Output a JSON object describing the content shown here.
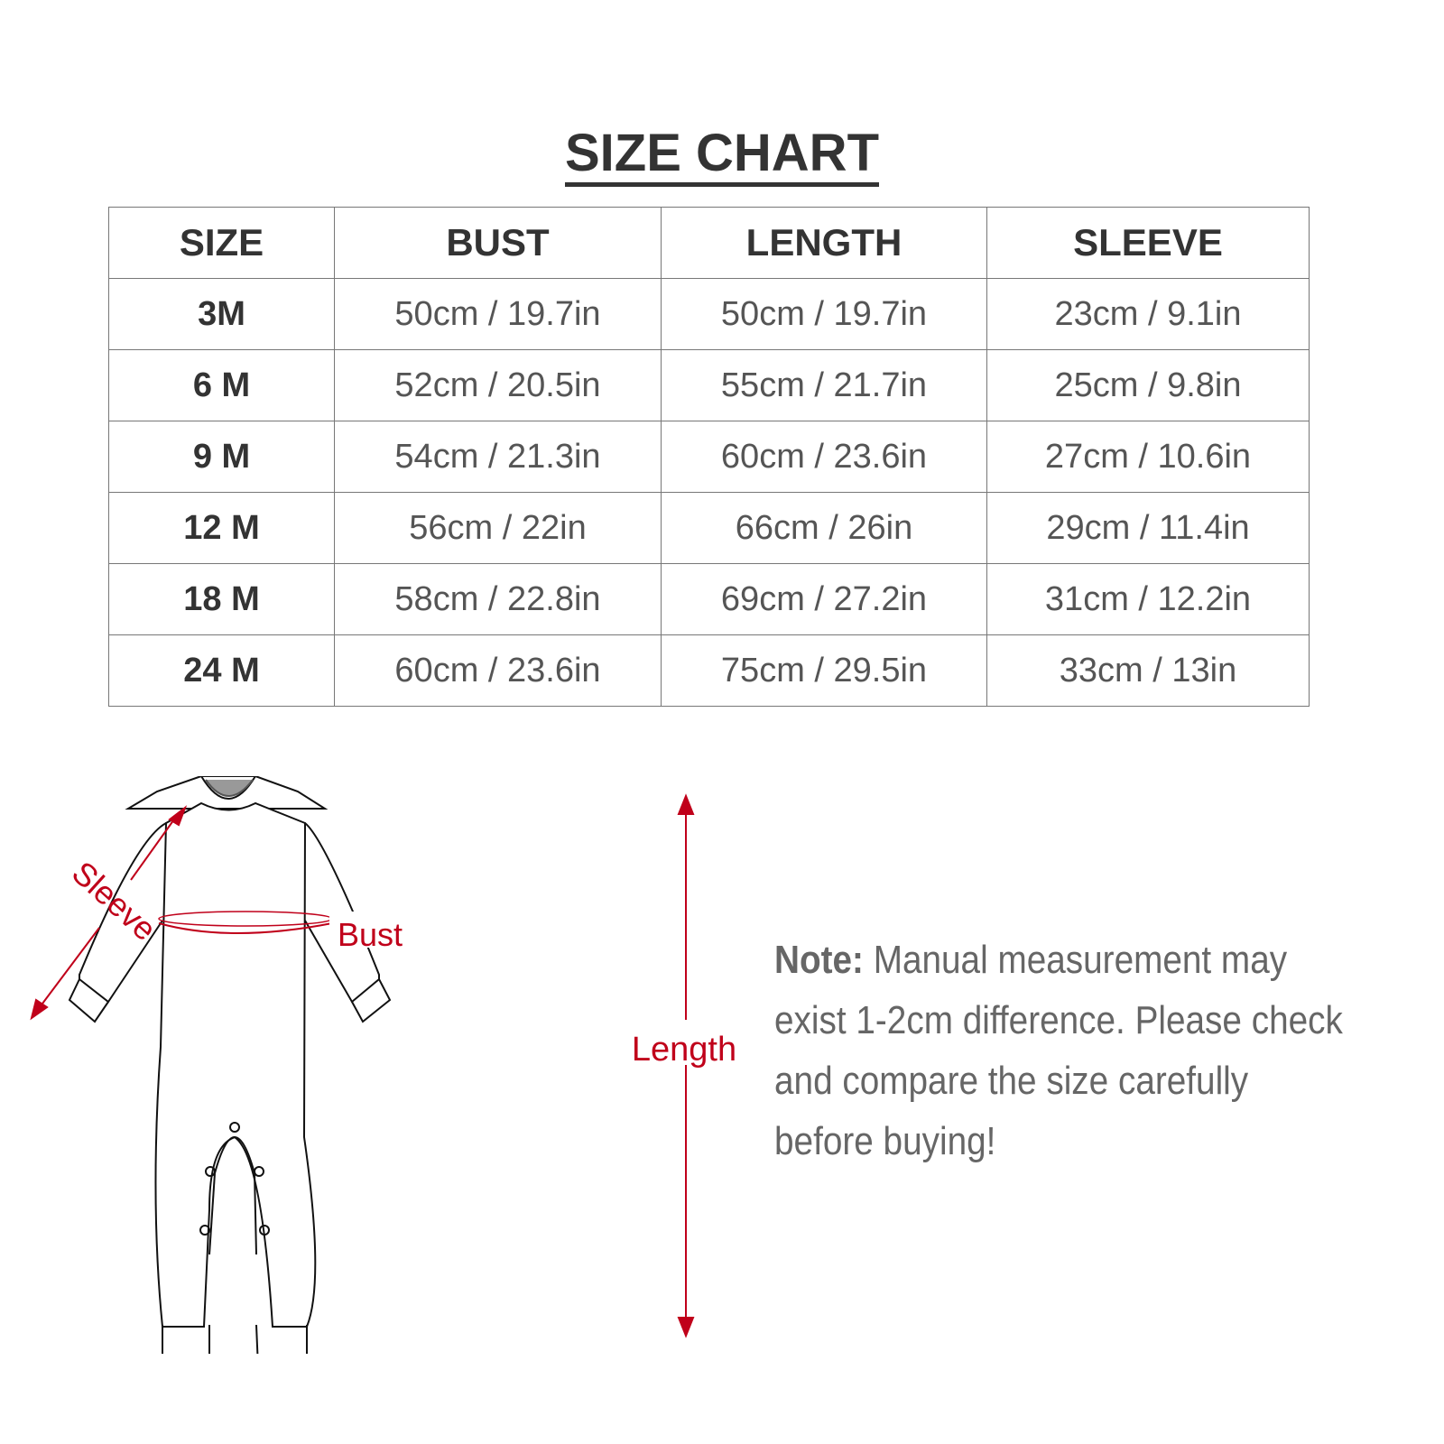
{
  "title": "SIZE CHART",
  "table": {
    "headers": [
      "SIZE",
      "BUST",
      "LENGTH",
      "SLEEVE"
    ],
    "rows": [
      [
        "3M",
        "50cm / 19.7in",
        "50cm / 19.7in",
        "23cm / 9.1in"
      ],
      [
        "6 M",
        "52cm / 20.5in",
        "55cm / 21.7in",
        "25cm / 9.8in"
      ],
      [
        "9 M",
        "54cm / 21.3in",
        "60cm / 23.6in",
        "27cm / 10.6in"
      ],
      [
        "12 M",
        "56cm / 22in",
        "66cm / 26in",
        "29cm / 11.4in"
      ],
      [
        "18 M",
        "58cm / 22.8in",
        "69cm / 27.2in",
        "31cm / 12.2in"
      ],
      [
        "24 M",
        "60cm / 23.6in",
        "75cm / 29.5in",
        "33cm / 13in"
      ]
    ]
  },
  "diagram": {
    "sleeve_label": "Sleeve",
    "bust_label": "Bust",
    "length_label": "Length",
    "accent": "#c0001a"
  },
  "note": {
    "label": "Note:",
    "text": " Manual measurement may exist 1-2cm difference. Please check and compare the size carefully before buying!"
  }
}
